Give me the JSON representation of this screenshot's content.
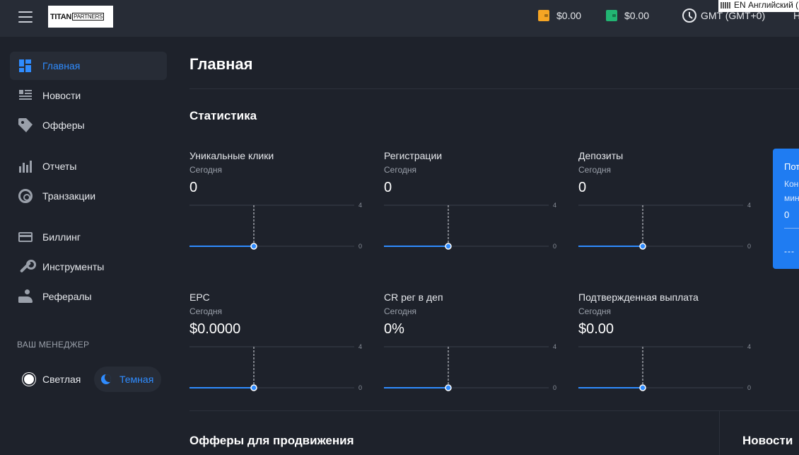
{
  "header": {
    "logo_main": "TITAN",
    "logo_sub": "PARTNERS",
    "balances": [
      {
        "value": "$0.00",
        "color": "#f5a524",
        "icon": "wallet-icon"
      },
      {
        "value": "$0.00",
        "color": "#22b573",
        "icon": "wallet-icon"
      }
    ],
    "timezone": "GMT (GMT+0)",
    "lang_tooltip": "EN Английский (",
    "cut_text": "H"
  },
  "sidebar": {
    "items": [
      {
        "label": "Главная",
        "icon": "dashboard-icon",
        "active": true
      },
      {
        "label": "Новости",
        "icon": "news-icon"
      },
      {
        "label": "Офферы",
        "icon": "tag-icon"
      },
      {
        "label": "Отчеты",
        "icon": "bar-chart-icon"
      },
      {
        "label": "Транзакции",
        "icon": "transactions-icon"
      },
      {
        "label": "Биллинг",
        "icon": "credit-card-icon"
      },
      {
        "label": "Инструменты",
        "icon": "wrench-icon"
      },
      {
        "label": "Рефералы",
        "icon": "referral-icon"
      }
    ],
    "manager_label": "ВАШ МЕНЕДЖЕР",
    "theme_light": "Светлая",
    "theme_dark": "Темная"
  },
  "main": {
    "title": "Главная",
    "stats_title": "Статистика",
    "stats": [
      {
        "name": "Уникальные клики",
        "period": "Сегодня",
        "value": "0"
      },
      {
        "name": "Регистрации",
        "period": "Сегодня",
        "value": "0"
      },
      {
        "name": "Депозиты",
        "period": "Сегодня",
        "value": "0"
      },
      {
        "name": "EPC",
        "period": "Сегодня",
        "value": "$0.0000"
      },
      {
        "name": "CR рег в деп",
        "period": "Сегодня",
        "value": "0%"
      },
      {
        "name": "Подтвержденная выплата",
        "period": "Сегодня",
        "value": "$0.00"
      }
    ],
    "promo": {
      "title": "Пот",
      "line1": "Кон",
      "line2": "мин",
      "value": "0",
      "dashes": "---"
    },
    "offers_title": "Офферы для продвижения",
    "news_title": "Новости"
  },
  "chart_data": [
    {
      "type": "line",
      "title": "Уникальные клики",
      "y_ticks": [
        "4",
        "0"
      ],
      "ylim": [
        0,
        4
      ],
      "values": [
        0,
        0
      ]
    },
    {
      "type": "line",
      "title": "Регистрации",
      "y_ticks": [
        "4",
        "0"
      ],
      "ylim": [
        0,
        4
      ],
      "values": [
        0,
        0
      ]
    },
    {
      "type": "line",
      "title": "Депозиты",
      "y_ticks": [
        "4",
        "0"
      ],
      "ylim": [
        0,
        4
      ],
      "values": [
        0,
        0
      ]
    },
    {
      "type": "line",
      "title": "EPC",
      "y_ticks": [
        "4",
        "0"
      ],
      "ylim": [
        0,
        4
      ],
      "values": [
        0,
        0
      ]
    },
    {
      "type": "line",
      "title": "CR рег в деп",
      "y_ticks": [
        "4",
        "0"
      ],
      "ylim": [
        0,
        4
      ],
      "values": [
        0,
        0
      ]
    },
    {
      "type": "line",
      "title": "Подтвержденная выплата",
      "y_ticks": [
        "4",
        "0"
      ],
      "ylim": [
        0,
        4
      ],
      "values": [
        0,
        0
      ]
    }
  ]
}
